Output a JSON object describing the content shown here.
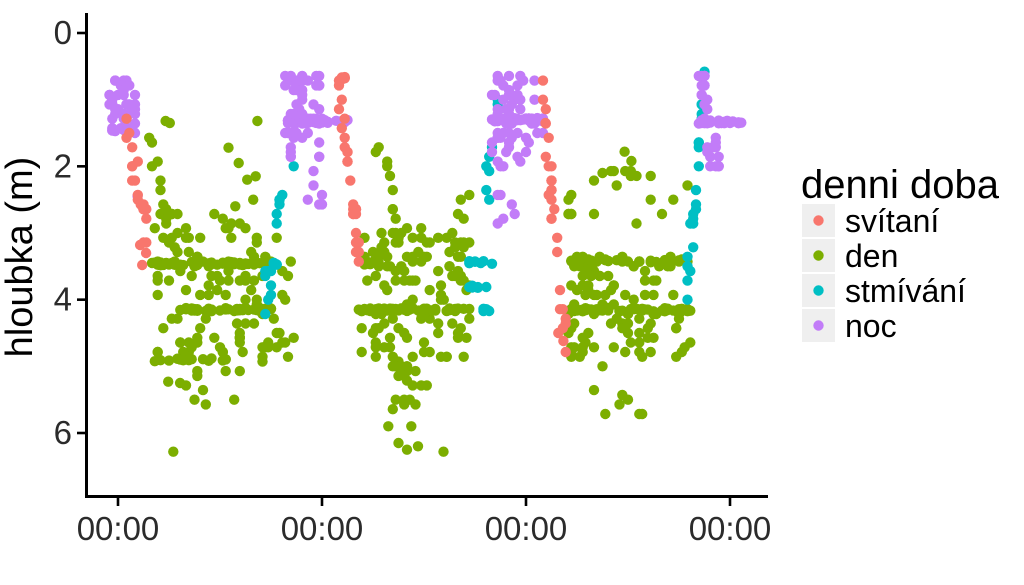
{
  "figure": {
    "y_axis_title": "hloubka (m)",
    "x_axis_title": ""
  },
  "legend": {
    "title": "denni doba",
    "entries": [
      {
        "label": "svítaní",
        "color": "#F8766D"
      },
      {
        "label": "den",
        "color": "#7CAE00"
      },
      {
        "label": "stmívání",
        "color": "#00BFC4"
      },
      {
        "label": "noc",
        "color": "#C27CF8"
      }
    ],
    "key_background": "#EFEFEF"
  },
  "chart_data": {
    "type": "scatter",
    "title": "",
    "xlabel": "",
    "ylabel": "hloubka (m)",
    "x_axis": {
      "tick_labels": [
        "00:00",
        "00:00",
        "00:00",
        "00:00"
      ],
      "tick_hours": [
        0,
        24,
        48,
        72
      ],
      "domain_hours": [
        -3.8,
        76.5
      ],
      "units": "time of day over ~3 days"
    },
    "y_axis": {
      "label": "hloubka (m)",
      "tick_labels": [
        "0",
        "2",
        "4",
        "6"
      ],
      "tick_values": [
        0,
        2,
        4,
        6
      ],
      "domain": [
        -0.3,
        6.95
      ],
      "reversed": true,
      "units": "m"
    },
    "legend": {
      "title": "denni doba",
      "position": "right",
      "entries": [
        {
          "name": "svítaní",
          "color": "#F8766D"
        },
        {
          "name": "den",
          "color": "#7CAE00"
        },
        {
          "name": "stmívání",
          "color": "#00BFC4"
        },
        {
          "name": "noc",
          "color": "#C27CF8"
        }
      ]
    },
    "point_radius_px": 5.2,
    "grid": false,
    "pattern_summary": "Diel vertical migration: shallow (~0.6-2 m) at night (noc), descending at dawn (svítaní), deep (~3.4-6.3 m) during day (den) with holding bands at 3.45/4.15/4.9 m, ascending at dusk (stmívání); night holding band at ~1.3 m.",
    "series": [
      {
        "name": "den",
        "color": "#7CAE00",
        "clusters": [
          {
            "shape": "trend",
            "t": [
              3.6,
              7.0
            ],
            "d": [
              1.55,
              3.2
            ],
            "n": 13
          },
          {
            "shape": "points",
            "pts": [
              [
                5.6,
                1.32
              ],
              [
                6.1,
                1.35
              ],
              [
                16.4,
                1.32
              ],
              [
                13.0,
                1.72
              ],
              [
                14.2,
                1.95
              ],
              [
                15.2,
                2.2
              ],
              [
                15.9,
                2.5
              ],
              [
                13.8,
                2.6
              ],
              [
                16.2,
                2.15
              ]
            ]
          },
          {
            "shape": "uniform",
            "t": [
              4.2,
              20.6
            ],
            "d": [
              2.7,
              4.9
            ],
            "n": 115
          },
          {
            "shape": "hband",
            "t": [
              3.9,
              18.0
            ],
            "d": [
              3.46,
              3.46
            ],
            "n": 40
          },
          {
            "shape": "hband",
            "t": [
              6.6,
              18.2
            ],
            "d": [
              4.15,
              4.15
            ],
            "n": 42
          },
          {
            "shape": "hband",
            "t": [
              4.1,
              12.6
            ],
            "d": [
              4.9,
              4.9
            ],
            "n": 16
          },
          {
            "shape": "uniform",
            "t": [
              6.0,
              16.0
            ],
            "d": [
              5.0,
              5.65
            ],
            "n": 9
          },
          {
            "shape": "points",
            "pts": [
              [
                6.5,
                6.28
              ],
              [
                7.3,
                5.25
              ],
              [
                5.9,
                5.23
              ]
            ]
          },
          {
            "shape": "trend",
            "t": [
              30.0,
              33.6
            ],
            "d": [
              1.3,
              3.4
            ],
            "n": 15
          },
          {
            "shape": "uniform",
            "t": [
              28.3,
              41.3
            ],
            "d": [
              2.95,
              4.9
            ],
            "n": 105
          },
          {
            "shape": "hband",
            "t": [
              28.2,
              41.3
            ],
            "d": [
              4.15,
              4.15
            ],
            "n": 50
          },
          {
            "shape": "hband",
            "t": [
              28.3,
              30.6
            ],
            "d": [
              3.45,
              3.45
            ],
            "n": 8
          },
          {
            "shape": "uniform",
            "t": [
              32.0,
              36.5
            ],
            "d": [
              4.9,
              5.65
            ],
            "n": 22
          },
          {
            "shape": "points",
            "pts": [
              [
                31.8,
                5.9
              ],
              [
                33.0,
                6.15
              ],
              [
                34.0,
                6.25
              ],
              [
                35.3,
                6.2
              ],
              [
                38.3,
                6.28
              ],
              [
                34.5,
                5.9
              ]
            ]
          },
          {
            "shape": "uniform",
            "t": [
              39.3,
              41.3
            ],
            "d": [
              2.2,
              3.35
            ],
            "n": 8
          },
          {
            "shape": "uniform",
            "t": [
              52.8,
              67.3
            ],
            "d": [
              3.35,
              4.9
            ],
            "n": 105
          },
          {
            "shape": "hband",
            "t": [
              52.6,
              67.4
            ],
            "d": [
              4.15,
              4.15
            ],
            "n": 45
          },
          {
            "shape": "hband",
            "t": [
              53.2,
              67.0
            ],
            "d": [
              3.42,
              3.42
            ],
            "n": 30
          },
          {
            "shape": "uniform",
            "t": [
              55.8,
              67.2
            ],
            "d": [
              1.95,
              3.05
            ],
            "n": 15
          },
          {
            "shape": "points",
            "pts": [
              [
                59.6,
                1.78
              ],
              [
                60.4,
                1.92
              ],
              [
                57.0,
                2.1
              ]
            ]
          },
          {
            "shape": "uniform",
            "t": [
              54.5,
              62.0
            ],
            "d": [
              4.95,
              5.75
            ],
            "n": 8
          },
          {
            "shape": "trend",
            "t": [
              52.8,
              54.2
            ],
            "d": [
              2.35,
              3.3
            ],
            "n": 6
          }
        ]
      },
      {
        "name": "stmívání",
        "color": "#00BFC4",
        "clusters": [
          {
            "shape": "uniform",
            "t": [
              17.3,
              18.2
            ],
            "d": [
              3.4,
              4.3
            ],
            "n": 8
          },
          {
            "shape": "hband",
            "t": [
              17.8,
              19.3
            ],
            "d": [
              3.46,
              3.46
            ],
            "n": 5
          },
          {
            "shape": "trend",
            "t": [
              18.6,
              20.6
            ],
            "d": [
              2.75,
              1.8
            ],
            "n": 7
          },
          {
            "shape": "hband",
            "t": [
              40.8,
              44.1
            ],
            "d": [
              3.44,
              3.44
            ],
            "n": 7
          },
          {
            "shape": "hband",
            "t": [
              41.3,
              44.1
            ],
            "d": [
              3.8,
              3.8
            ],
            "n": 6
          },
          {
            "shape": "hband",
            "t": [
              41.9,
              44.1
            ],
            "d": [
              4.15,
              4.15
            ],
            "n": 6
          },
          {
            "shape": "trend",
            "t": [
              43.3,
              44.8
            ],
            "d": [
              2.3,
              0.95
            ],
            "n": 8
          },
          {
            "shape": "trend",
            "t": [
              66.8,
              68.9
            ],
            "d": [
              4.25,
              0.68
            ],
            "n": 24
          }
        ]
      },
      {
        "name": "noc",
        "color": "#C27CF8",
        "clusters": [
          {
            "shape": "uniform",
            "t": [
              -1.0,
              2.3
            ],
            "d": [
              0.62,
              1.58
            ],
            "n": 42
          },
          {
            "shape": "hband",
            "t": [
              -1.0,
              1.4
            ],
            "d": [
              1.45,
              1.45
            ],
            "n": 10
          },
          {
            "shape": "points",
            "pts": [
              [
                2.3,
                2.45
              ]
            ]
          },
          {
            "shape": "hband",
            "t": [
              19.9,
              26.9
            ],
            "d": [
              1.33,
              1.33
            ],
            "n": 45
          },
          {
            "shape": "uniform",
            "t": [
              19.7,
              23.9
            ],
            "d": [
              0.62,
              1.95
            ],
            "n": 55
          },
          {
            "shape": "uniform",
            "t": [
              22.2,
              24.3
            ],
            "d": [
              2.05,
              2.6
            ],
            "n": 6
          },
          {
            "shape": "hband",
            "t": [
              44.1,
              50.2
            ],
            "d": [
              1.3,
              1.3
            ],
            "n": 45
          },
          {
            "shape": "uniform",
            "t": [
              44.1,
              48.2
            ],
            "d": [
              0.62,
              2.1
            ],
            "n": 48
          },
          {
            "shape": "uniform",
            "t": [
              48.2,
              50.2
            ],
            "d": [
              0.65,
              1.9
            ],
            "n": 10
          },
          {
            "shape": "uniform",
            "t": [
              44.4,
              46.8
            ],
            "d": [
              2.2,
              2.85
            ],
            "n": 6
          },
          {
            "shape": "uniform",
            "t": [
              68.4,
              69.4
            ],
            "d": [
              0.6,
              1.35
            ],
            "n": 16
          },
          {
            "shape": "hband",
            "t": [
              68.5,
              73.2
            ],
            "d": [
              1.33,
              1.33
            ],
            "n": 30
          },
          {
            "shape": "uniform",
            "t": [
              69.0,
              70.8
            ],
            "d": [
              1.5,
              2.12
            ],
            "n": 12
          }
        ]
      },
      {
        "name": "svítaní",
        "color": "#F8766D",
        "clusters": [
          {
            "shape": "trend",
            "t": [
              1.2,
              3.4
            ],
            "d": [
              1.45,
              2.95
            ],
            "n": 20
          },
          {
            "shape": "points",
            "pts": [
              [
                2.6,
                3.18
              ],
              [
                2.85,
                3.48
              ],
              [
                3.3,
                3.3
              ]
            ]
          },
          {
            "shape": "trend",
            "t": [
              25.9,
              28.3
            ],
            "d": [
              0.62,
              3.35
            ],
            "n": 26
          },
          {
            "shape": "hband",
            "t": [
              25.9,
              27.1
            ],
            "d": [
              0.68,
              0.68
            ],
            "n": 6
          },
          {
            "shape": "trend",
            "t": [
              50.0,
              52.6
            ],
            "d": [
              0.9,
              4.6
            ],
            "n": 26
          },
          {
            "shape": "points",
            "pts": [
              [
                51.8,
                4.5
              ],
              [
                52.4,
                4.62
              ],
              [
                50.3,
                1.35
              ]
            ]
          }
        ]
      }
    ]
  }
}
